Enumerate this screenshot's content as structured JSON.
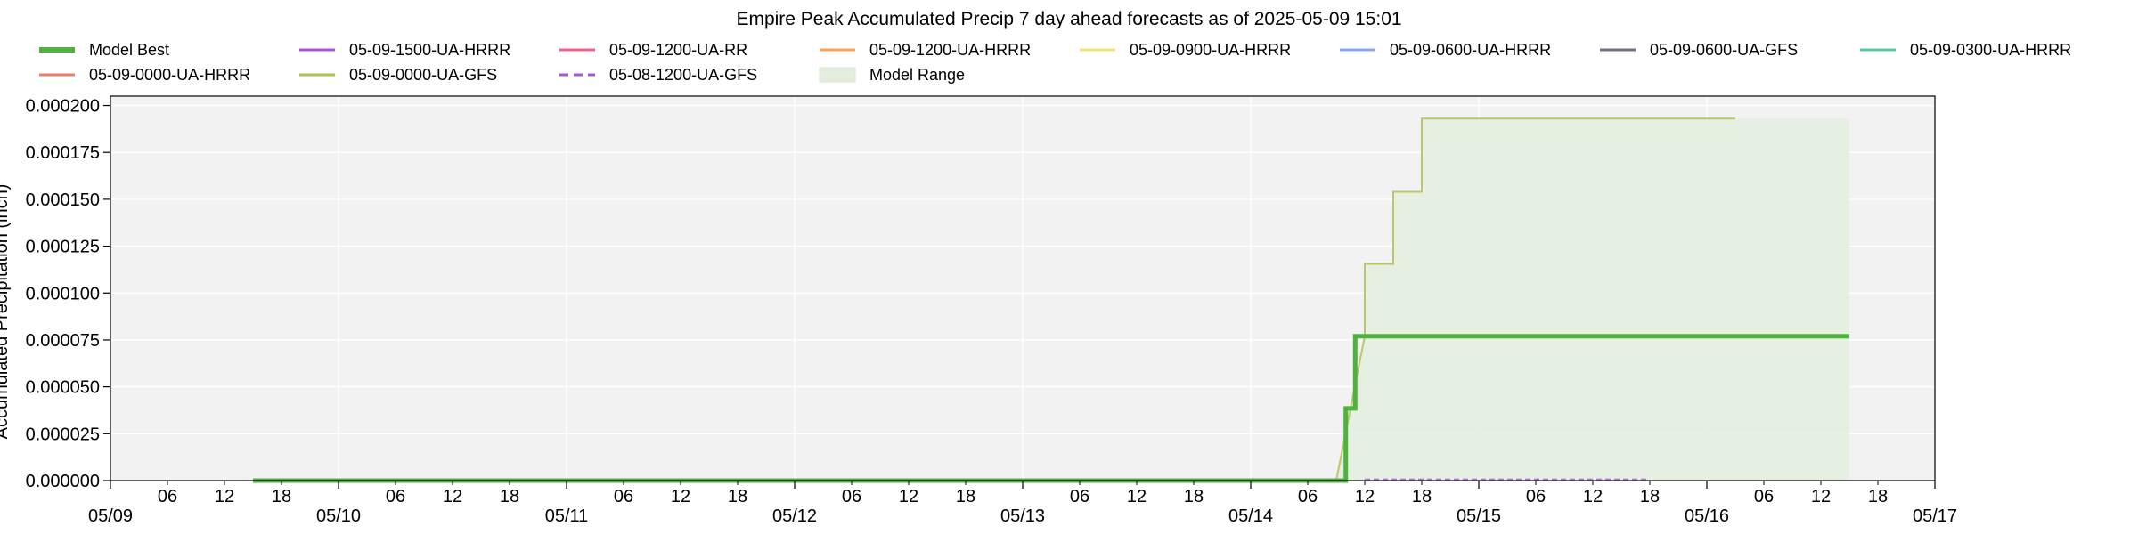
{
  "chart_data": {
    "type": "line",
    "title": "Empire Peak Accumulated Precip 7 day ahead forecasts as of 2025-05-09 15:01",
    "xlabel": "",
    "ylabel": "Accumulated Precipitation (inch)",
    "xlim": [
      "2025-05-09 00:00",
      "2025-05-17 00:00"
    ],
    "ylim": [
      0,
      0.000205
    ],
    "x_major_ticks": [
      "05/09",
      "05/10",
      "05/11",
      "05/12",
      "05/13",
      "05/14",
      "05/15",
      "05/16",
      "05/17"
    ],
    "x_minor_ticks": [
      "06",
      "12",
      "18"
    ],
    "y_ticks": [
      "0.000000",
      "0.000025",
      "0.000050",
      "0.000075",
      "0.000100",
      "0.000125",
      "0.000150",
      "0.000175",
      "0.000200"
    ],
    "grid": true,
    "legend_placement": "top, above plot",
    "legend": [
      {
        "label": "Model Best",
        "color": "#4db33d",
        "style": "thick"
      },
      {
        "label": "05-09-1500-UA-HRRR",
        "color": "#a855d6",
        "style": "solid"
      },
      {
        "label": "05-09-1200-UA-RR",
        "color": "#f0648c",
        "style": "solid"
      },
      {
        "label": "05-09-1200-UA-HRRR",
        "color": "#f7a35c",
        "style": "solid"
      },
      {
        "label": "05-09-0900-UA-HRRR",
        "color": "#f5e07a",
        "style": "solid"
      },
      {
        "label": "05-09-0600-UA-HRRR",
        "color": "#8aa7f0",
        "style": "solid"
      },
      {
        "label": "05-09-0600-UA-GFS",
        "color": "#6f6f85",
        "style": "solid"
      },
      {
        "label": "05-09-0300-UA-HRRR",
        "color": "#5cc7a8",
        "style": "solid"
      },
      {
        "label": "05-09-0000-UA-HRRR",
        "color": "#f07b6b",
        "style": "solid"
      },
      {
        "label": "05-09-0000-UA-GFS",
        "color": "#b3bf52",
        "style": "solid"
      },
      {
        "label": "05-08-1200-UA-GFS",
        "color": "#a855d6",
        "style": "dashed"
      },
      {
        "label": "Model Range",
        "color": "#e3eedf",
        "style": "patch"
      }
    ],
    "series": [
      {
        "name": "Model Best",
        "color": "#4db33d",
        "x": [
          "2025-05-09 15:00",
          "2025-05-14 10:00",
          "2025-05-14 10:00",
          "2025-05-14 11:00",
          "2025-05-14 11:00",
          "2025-05-16 15:00"
        ],
        "y": [
          0,
          0,
          3.85e-05,
          3.85e-05,
          7.7e-05,
          7.7e-05
        ]
      },
      {
        "name": "05-09-0000-UA-GFS",
        "color": "#b3bf52",
        "x": [
          "2025-05-09 15:00",
          "2025-05-14 09:00",
          "2025-05-14 12:00",
          "2025-05-14 12:00",
          "2025-05-14 15:00",
          "2025-05-14 15:00",
          "2025-05-14 18:00",
          "2025-05-14 18:00",
          "2025-05-16 03:00"
        ],
        "y": [
          0,
          0,
          7.7e-05,
          0.0001155,
          0.0001155,
          0.000154,
          0.000154,
          0.000193,
          0.000193
        ]
      },
      {
        "name": "05-08-1200-UA-GFS",
        "color": "#a855d6",
        "x": [
          "2025-05-14 12:00",
          "2025-05-15 18:00"
        ],
        "y": [
          7e-07,
          7e-07
        ]
      }
    ],
    "range": {
      "name": "Model Range",
      "color": "#e3eedf",
      "x": [
        "2025-05-14 09:00",
        "2025-05-14 12:00",
        "2025-05-14 12:00",
        "2025-05-14 15:00",
        "2025-05-14 15:00",
        "2025-05-14 18:00",
        "2025-05-14 18:00",
        "2025-05-16 15:00"
      ],
      "y_high": [
        0,
        7.7e-05,
        0.0001155,
        0.0001155,
        0.000154,
        0.000154,
        0.000193,
        0.000193
      ],
      "y_low": [
        0,
        0,
        0,
        0,
        0,
        0,
        0,
        0
      ]
    }
  }
}
